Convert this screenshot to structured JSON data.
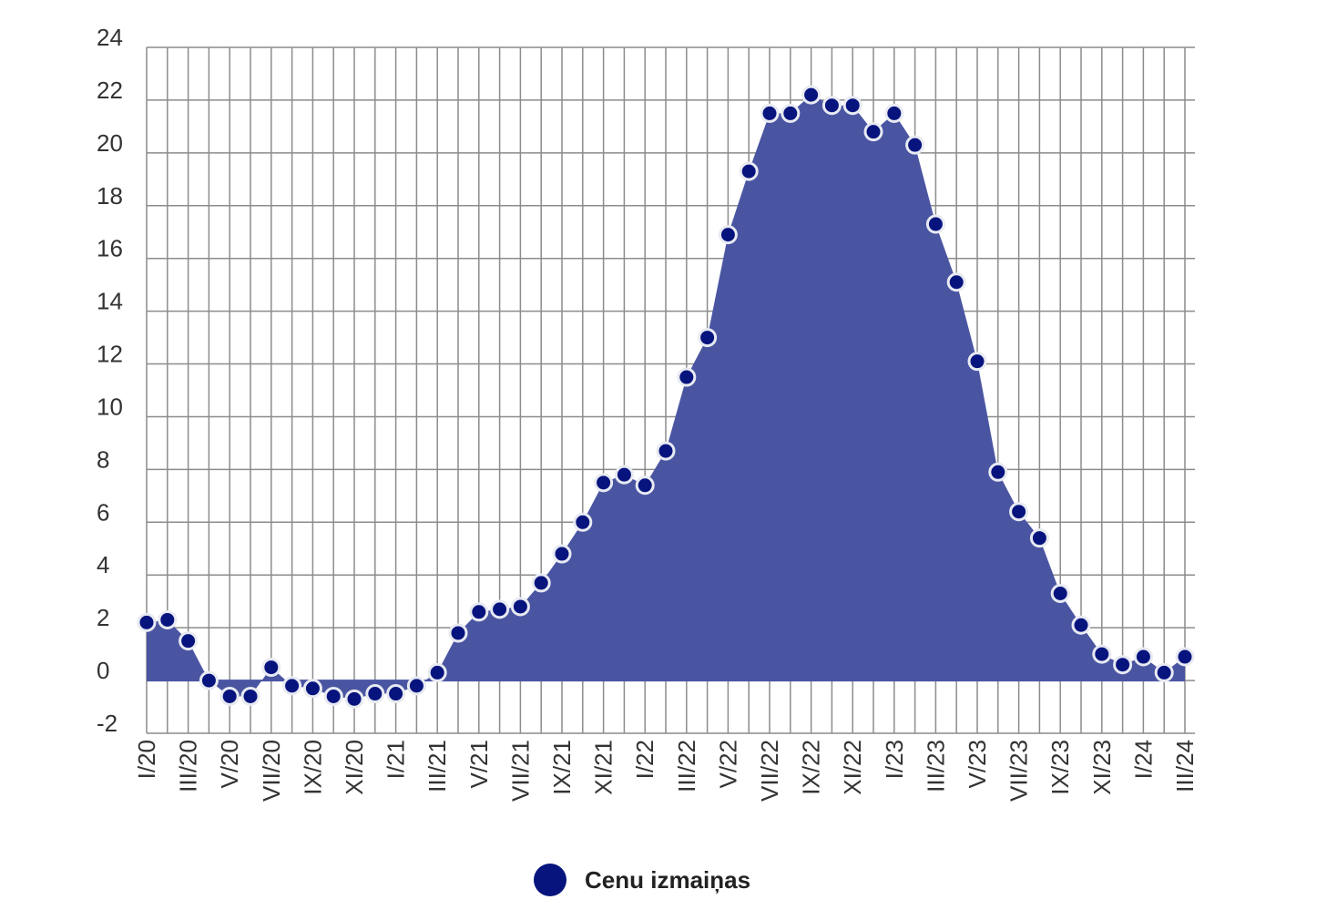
{
  "chart_data": {
    "type": "area",
    "title": "",
    "xlabel": "",
    "ylabel": "",
    "ylim": [
      -2,
      24
    ],
    "yticks": [
      -2,
      0,
      2,
      4,
      6,
      8,
      10,
      12,
      14,
      16,
      18,
      20,
      22,
      24
    ],
    "grid": true,
    "legend_position": "bottom-center",
    "x_tick_labels": [
      "I/20",
      "III/20",
      "V/20",
      "VII/20",
      "IX/20",
      "XI/20",
      "I/21",
      "III/21",
      "V/21",
      "VII/21",
      "IX/21",
      "XI/21",
      "I/22",
      "III/22",
      "V/22",
      "VII/22",
      "IX/22",
      "XI/22",
      "I/23",
      "III/23",
      "V/23",
      "VII/23",
      "IX/23",
      "XI/23",
      "I/24",
      "III/24"
    ],
    "series": [
      {
        "name": "Cenu izmaiņas",
        "color": "#07147e",
        "fill_color": "#4a55a2",
        "values": [
          2.2,
          2.3,
          1.5,
          0.0,
          -0.6,
          -0.6,
          0.5,
          -0.2,
          -0.3,
          -0.6,
          -0.7,
          -0.5,
          -0.5,
          -0.2,
          0.3,
          1.8,
          2.6,
          2.7,
          2.8,
          3.7,
          4.8,
          6.0,
          7.5,
          7.8,
          7.4,
          8.7,
          11.5,
          13.0,
          16.9,
          19.3,
          21.5,
          21.5,
          22.2,
          21.8,
          21.8,
          20.8,
          21.5,
          20.3,
          17.3,
          15.1,
          12.1,
          7.9,
          6.4,
          5.4,
          3.3,
          2.1,
          1.0,
          0.6,
          0.9,
          0.3,
          0.9
        ]
      }
    ]
  },
  "legend": {
    "label": "Cenu izmaiņas",
    "color": "#07147e"
  }
}
